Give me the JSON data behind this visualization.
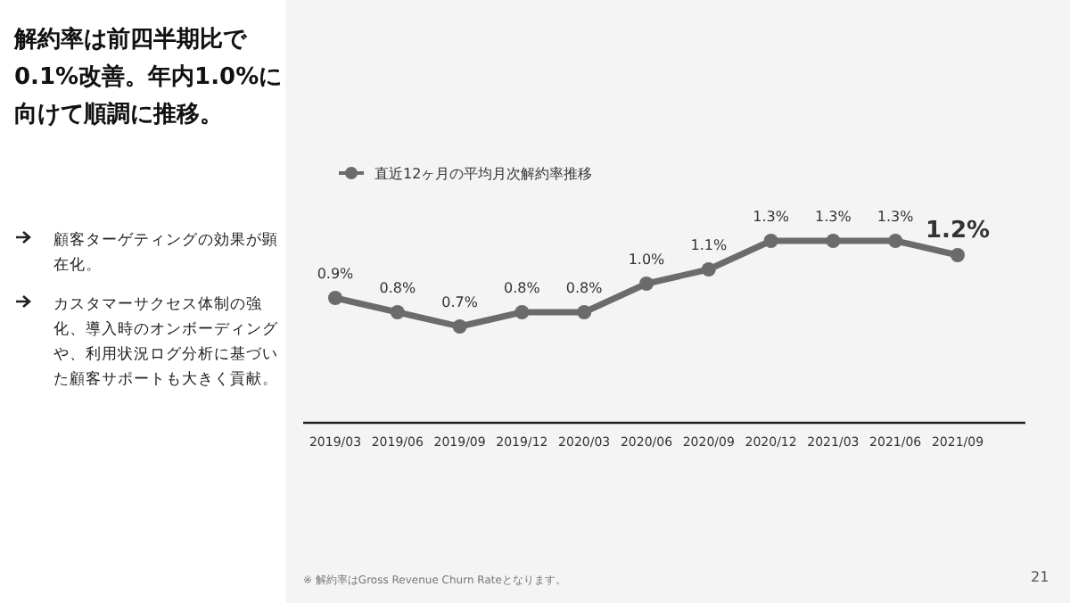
{
  "chart_data": {
    "type": "line",
    "title": "解約率は前四半期比で0.1%改善。年内1.0%に向けて順調に推移。",
    "categories": [
      "2019/03",
      "2019/06",
      "2019/09",
      "2019/12",
      "2020/03",
      "2020/06",
      "2020/09",
      "2020/12",
      "2021/03",
      "2021/06",
      "2021/09"
    ],
    "series": [
      {
        "name": "直近12ヶ月の平均月次解約率推移",
        "color": "#6b6b6b",
        "values": [
          0.9,
          0.8,
          0.7,
          0.8,
          0.8,
          1.0,
          1.1,
          1.3,
          1.3,
          1.3,
          1.2
        ],
        "value_labels": [
          "0.9%",
          "0.8%",
          "0.7%",
          "0.8%",
          "0.8%",
          "1.0%",
          "1.1%",
          "1.3%",
          "1.3%",
          "1.3%",
          "1.2%"
        ]
      }
    ],
    "marker": "circle",
    "legend": "top left",
    "line_style": "solid",
    "annotations": [
      "顧客ターゲティングの効果が顕在化。",
      "カスタマーサクセス体制の強化、導入時のオンボーディングや、利用状況ログ分析に基づいた顧客サポートも大きく貢献。",
      "※ 解約率はGross Revenue Churn Rateとなります。",
      "21"
    ]
  }
}
